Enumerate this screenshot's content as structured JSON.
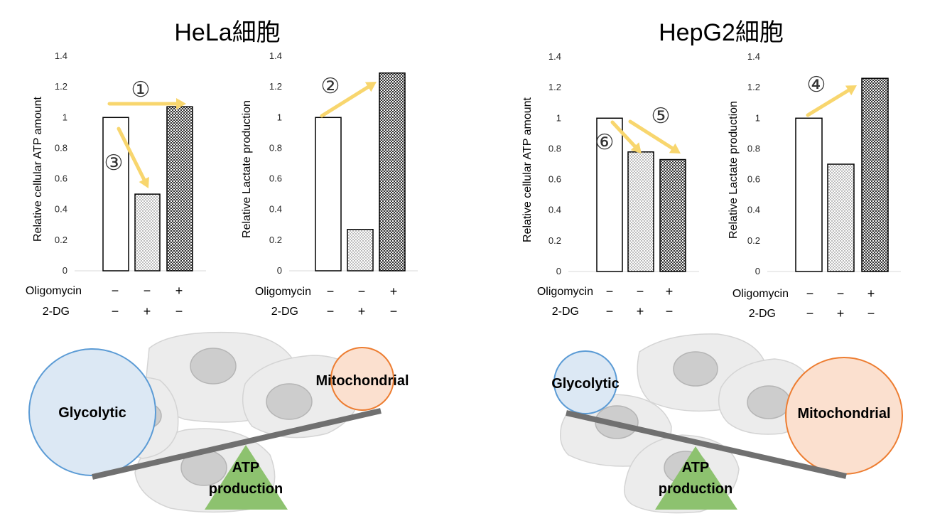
{
  "panels": [
    {
      "title": "HeLa細胞",
      "charts": [
        {
          "ylabel": "Relative cellular ATP amount",
          "values": [
            1,
            0.5,
            1.07
          ]
        },
        {
          "ylabel": "Relative Lactate production",
          "values": [
            1,
            0.27,
            1.29
          ]
        }
      ],
      "balance": {
        "left_label": "Glycolytic",
        "right_label": "Mitochondrial",
        "fulcrum_label_line1": "ATP",
        "fulcrum_label_line2": "production"
      }
    },
    {
      "title": "HepG2細胞",
      "charts": [
        {
          "ylabel": "Relative cellular ATP amount",
          "values": [
            1,
            0.78,
            0.73
          ]
        },
        {
          "ylabel": "Relative Lactate production",
          "values": [
            1,
            0.7,
            1.26
          ]
        }
      ],
      "balance": {
        "left_label": "Glycolytic",
        "right_label": "Mitochondrial",
        "fulcrum_label_line1": "ATP",
        "fulcrum_label_line2": "production"
      }
    }
  ],
  "chart_data": [
    {
      "type": "bar",
      "panel": "HeLa細胞",
      "ylabel": "Relative cellular ATP amount",
      "ylim": [
        0,
        1.4
      ],
      "yticks": [
        "0",
        "0.2",
        "0.4",
        "0.6",
        "0.8",
        "1",
        "1.2",
        "1.4"
      ],
      "conditions": [
        {
          "Oligomycin": "−",
          "2-DG": "−"
        },
        {
          "Oligomycin": "−",
          "2-DG": "+"
        },
        {
          "Oligomycin": "+",
          "2-DG": "−"
        }
      ],
      "values": [
        1,
        0.5,
        1.07
      ]
    },
    {
      "type": "bar",
      "panel": "HeLa細胞",
      "ylabel": "Relative Lactate production",
      "ylim": [
        0,
        1.4
      ],
      "yticks": [
        "0",
        "0.2",
        "0.4",
        "0.6",
        "0.8",
        "1",
        "1.2",
        "1.4"
      ],
      "conditions": [
        {
          "Oligomycin": "−",
          "2-DG": "−"
        },
        {
          "Oligomycin": "−",
          "2-DG": "+"
        },
        {
          "Oligomycin": "+",
          "2-DG": "−"
        }
      ],
      "values": [
        1,
        0.27,
        1.29
      ]
    },
    {
      "type": "bar",
      "panel": "HepG2細胞",
      "ylabel": "Relative cellular ATP amount",
      "ylim": [
        0,
        1.4
      ],
      "yticks": [
        "0",
        "0.2",
        "0.4",
        "0.6",
        "0.8",
        "1",
        "1.2",
        "1.4"
      ],
      "conditions": [
        {
          "Oligomycin": "−",
          "2-DG": "−"
        },
        {
          "Oligomycin": "−",
          "2-DG": "+"
        },
        {
          "Oligomycin": "+",
          "2-DG": "−"
        }
      ],
      "values": [
        1,
        0.78,
        0.73
      ]
    },
    {
      "type": "bar",
      "panel": "HepG2細胞",
      "ylabel": "Relative Lactate production",
      "ylim": [
        0,
        1.4
      ],
      "yticks": [
        "0",
        "0.2",
        "0.4",
        "0.6",
        "0.8",
        "1",
        "1.2",
        "1.4"
      ],
      "conditions": [
        {
          "Oligomycin": "−",
          "2-DG": "−"
        },
        {
          "Oligomycin": "−",
          "2-DG": "+"
        },
        {
          "Oligomycin": "+",
          "2-DG": "−"
        }
      ],
      "values": [
        1,
        0.7,
        1.26
      ]
    }
  ],
  "row_labels": {
    "oligomycin": "Oligomycin",
    "dg": "2-DG"
  },
  "annotations": [
    "①",
    "②",
    "③",
    "④",
    "⑤",
    "⑥"
  ],
  "colors": {
    "arrow": "#F8D66E",
    "glycolytic_fill": "#DCE8F4",
    "glycolytic_stroke": "#5B9BD5",
    "mito_fill": "#FBE0CF",
    "mito_stroke": "#ED7D31",
    "fulcrum": "#8DC26F",
    "beam": "#707070"
  }
}
